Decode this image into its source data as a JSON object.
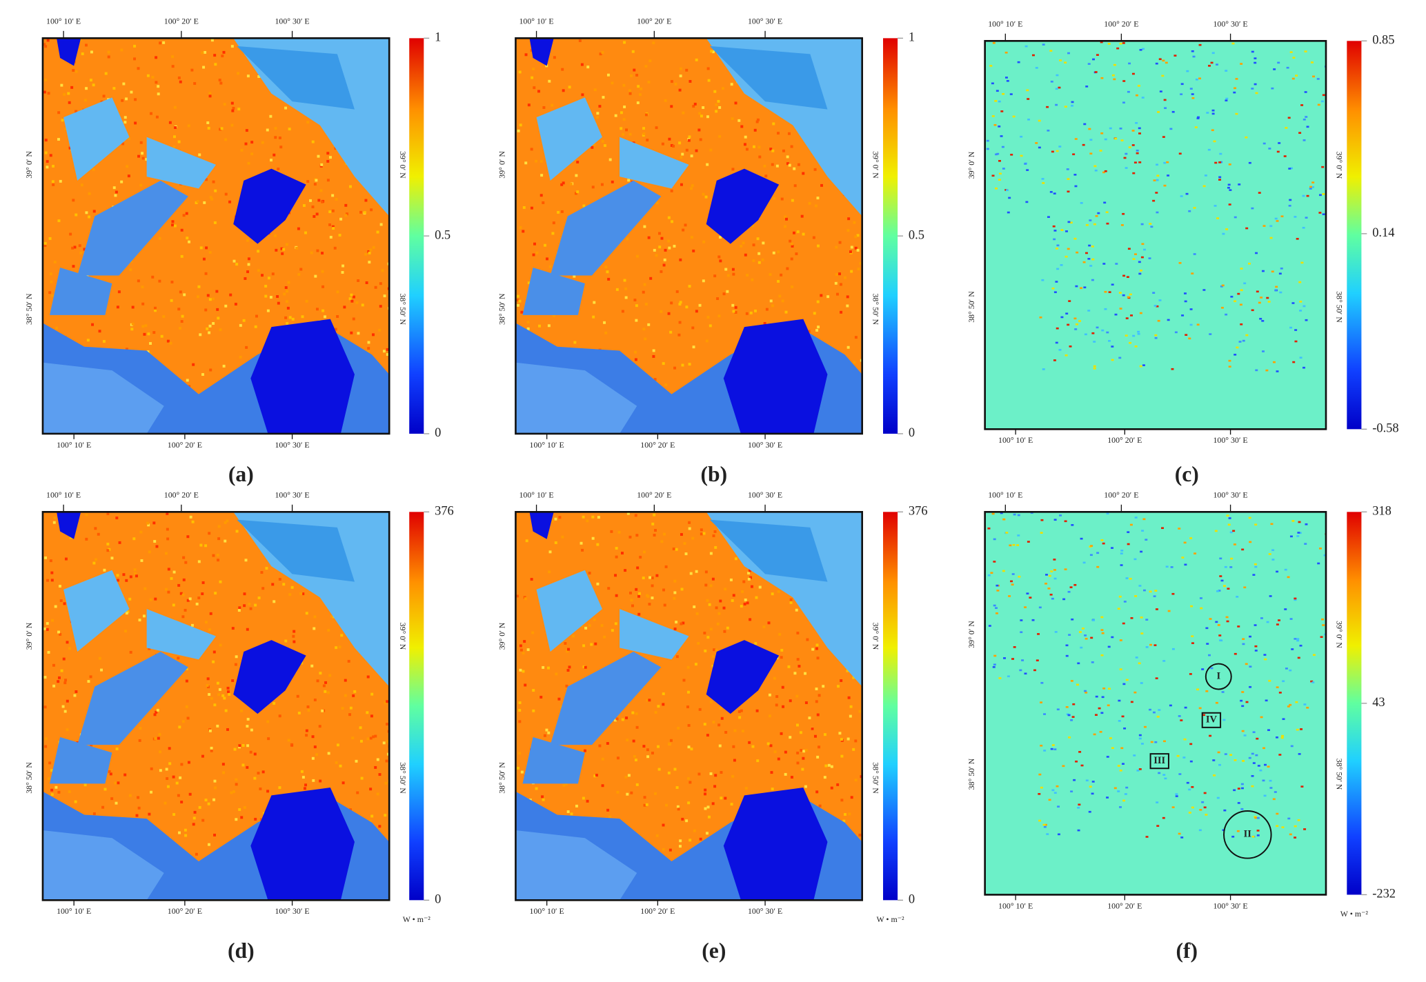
{
  "lon_labels": [
    "100° 10′ E",
    "100° 20′ E",
    "100° 30′ E"
  ],
  "lat_labels": [
    "39° 0′ N",
    "38° 50′ N"
  ],
  "unit": "W • m⁻²",
  "panels": [
    {
      "label": "(a)",
      "kind": "value",
      "colorbar": {
        "lim": [
          0,
          1
        ],
        "ticks": [
          0,
          0.5,
          1
        ]
      }
    },
    {
      "label": "(b)",
      "kind": "value",
      "colorbar": {
        "lim": [
          0,
          1
        ],
        "ticks": [
          0,
          0.5,
          1
        ]
      }
    },
    {
      "label": "(c)",
      "kind": "difference",
      "colorbar": {
        "lim": [
          -0.58,
          0.85
        ],
        "ticks": [
          -0.58,
          0.14,
          0.85
        ]
      }
    },
    {
      "label": "(d)",
      "kind": "value",
      "colorbar": {
        "lim": [
          0,
          376
        ],
        "ticks": [
          0,
          376
        ]
      },
      "show_unit": true
    },
    {
      "label": "(e)",
      "kind": "value",
      "colorbar": {
        "lim": [
          0,
          376
        ],
        "ticks": [
          0,
          376
        ]
      },
      "show_unit": true
    },
    {
      "label": "(f)",
      "kind": "difference",
      "colorbar": {
        "lim": [
          -232,
          318
        ],
        "ticks": [
          -232,
          43,
          318
        ]
      },
      "show_unit": true,
      "annotations": [
        "I",
        "II",
        "III",
        "IV"
      ]
    }
  ]
}
